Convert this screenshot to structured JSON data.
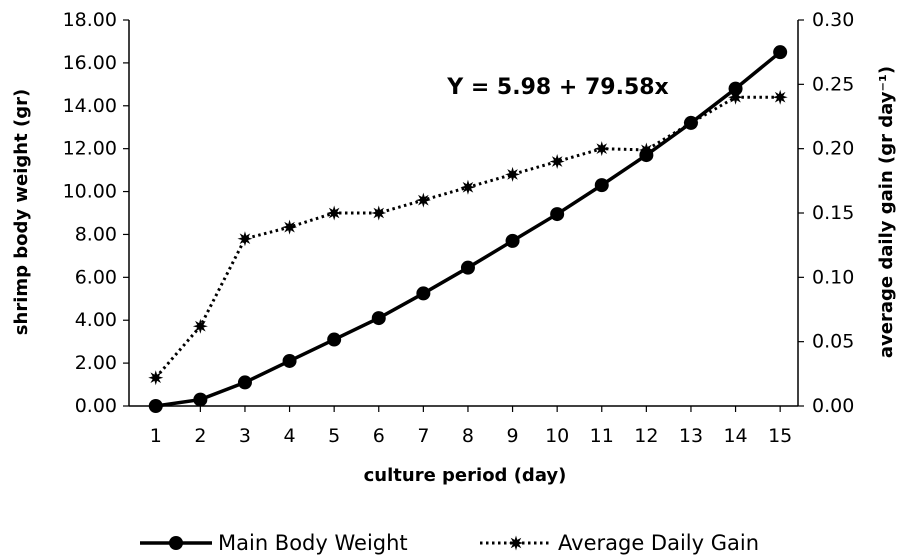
{
  "chart_data": {
    "type": "line",
    "xlabel": "culture period (day)",
    "ylabel_left": "shrimp body weight (gr)",
    "ylabel_right": "average daily gain (gr day⁻¹)",
    "annotation": "Y = 5.98 + 79.58x",
    "x": [
      1,
      2,
      3,
      4,
      5,
      6,
      7,
      8,
      9,
      10,
      11,
      12,
      13,
      14,
      15
    ],
    "xlim": [
      0.4,
      15.4
    ],
    "ylim_left": [
      0,
      18
    ],
    "ylim_right": [
      0,
      0.3
    ],
    "yticks_left": [
      "0.00",
      "2.00",
      "4.00",
      "6.00",
      "8.00",
      "10.00",
      "12.00",
      "14.00",
      "16.00",
      "18.00"
    ],
    "yticks_right": [
      "0.00",
      "0.05",
      "0.10",
      "0.15",
      "0.20",
      "0.25",
      "0.30"
    ],
    "grid": false,
    "legend_position": "bottom",
    "series": [
      {
        "name": "Main Body Weight",
        "axis": "left",
        "style": "solid",
        "marker": "circle",
        "color": "#000000",
        "values": [
          0.0,
          0.3,
          1.1,
          2.1,
          3.1,
          4.1,
          5.25,
          6.45,
          7.7,
          8.95,
          10.3,
          11.7,
          13.2,
          14.8,
          16.5
        ]
      },
      {
        "name": "Average Daily Gain",
        "axis": "right",
        "style": "dotted",
        "marker": "star",
        "color": "#000000",
        "values": [
          0.022,
          0.062,
          0.13,
          0.139,
          0.15,
          0.15,
          0.16,
          0.17,
          0.18,
          0.19,
          0.2,
          0.199,
          0.22,
          0.24,
          0.24
        ]
      }
    ]
  }
}
